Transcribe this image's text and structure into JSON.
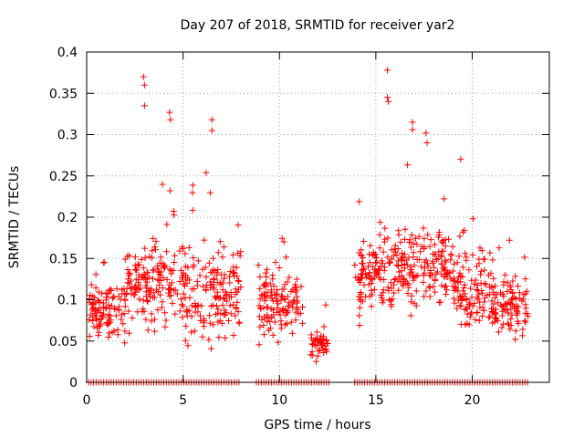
{
  "chart_data": {
    "type": "scatter",
    "title": "Day 207 of 2018, SRMTID for receiver yar2",
    "xlabel": "GPS time / hours",
    "ylabel": "SRMTID / TECUs",
    "xlim": [
      0,
      24
    ],
    "ylim": [
      0,
      0.4
    ],
    "grid": true,
    "marker": "+",
    "color": "#ff0000",
    "x_ticks": [
      "0",
      "5",
      "10",
      "15",
      "20"
    ],
    "y_ticks": [
      "0",
      "0.05",
      "0.1",
      "0.15",
      "0.2",
      "0.25",
      "0.3",
      "0.35",
      "0.4"
    ],
    "series": [
      {
        "name": "SRMTID",
        "segments": [
          {
            "x_range": [
              0.1,
              2.0
            ],
            "base": 0.085,
            "spread": 0.045
          },
          {
            "x_range": [
              2.0,
              3.0
            ],
            "base": 0.115,
            "spread": 0.06
          },
          {
            "x_range": [
              3.0,
              5.0
            ],
            "base": 0.12,
            "spread": 0.07
          },
          {
            "x_range": [
              5.0,
              8.0
            ],
            "base": 0.11,
            "spread": 0.08
          },
          {
            "x_range": [
              8.9,
              11.2
            ],
            "base": 0.095,
            "spread": 0.06
          },
          {
            "x_range": [
              11.6,
              12.5
            ],
            "base": 0.045,
            "spread": 0.025
          },
          {
            "x_range": [
              13.9,
              16.0
            ],
            "base": 0.13,
            "spread": 0.07
          },
          {
            "x_range": [
              16.0,
              19.0
            ],
            "base": 0.14,
            "spread": 0.07
          },
          {
            "x_range": [
              19.0,
              21.0
            ],
            "base": 0.11,
            "spread": 0.06
          },
          {
            "x_range": [
              21.0,
              22.9
            ],
            "base": 0.09,
            "spread": 0.05
          }
        ],
        "peaks": [
          {
            "x": 2.95,
            "y": 0.37
          },
          {
            "x": 3.0,
            "y": 0.36
          },
          {
            "x": 3.0,
            "y": 0.335
          },
          {
            "x": 4.3,
            "y": 0.327
          },
          {
            "x": 4.35,
            "y": 0.318
          },
          {
            "x": 6.5,
            "y": 0.318
          },
          {
            "x": 6.5,
            "y": 0.305
          },
          {
            "x": 15.6,
            "y": 0.378
          },
          {
            "x": 15.6,
            "y": 0.345
          },
          {
            "x": 15.65,
            "y": 0.34
          },
          {
            "x": 16.9,
            "y": 0.315
          },
          {
            "x": 16.9,
            "y": 0.306
          },
          {
            "x": 17.6,
            "y": 0.302
          },
          {
            "x": 19.4,
            "y": 0.27
          }
        ],
        "zero_x_ranges": [
          [
            0.1,
            8.0
          ],
          [
            8.8,
            12.6
          ],
          [
            13.9,
            22.9
          ]
        ]
      }
    ]
  }
}
